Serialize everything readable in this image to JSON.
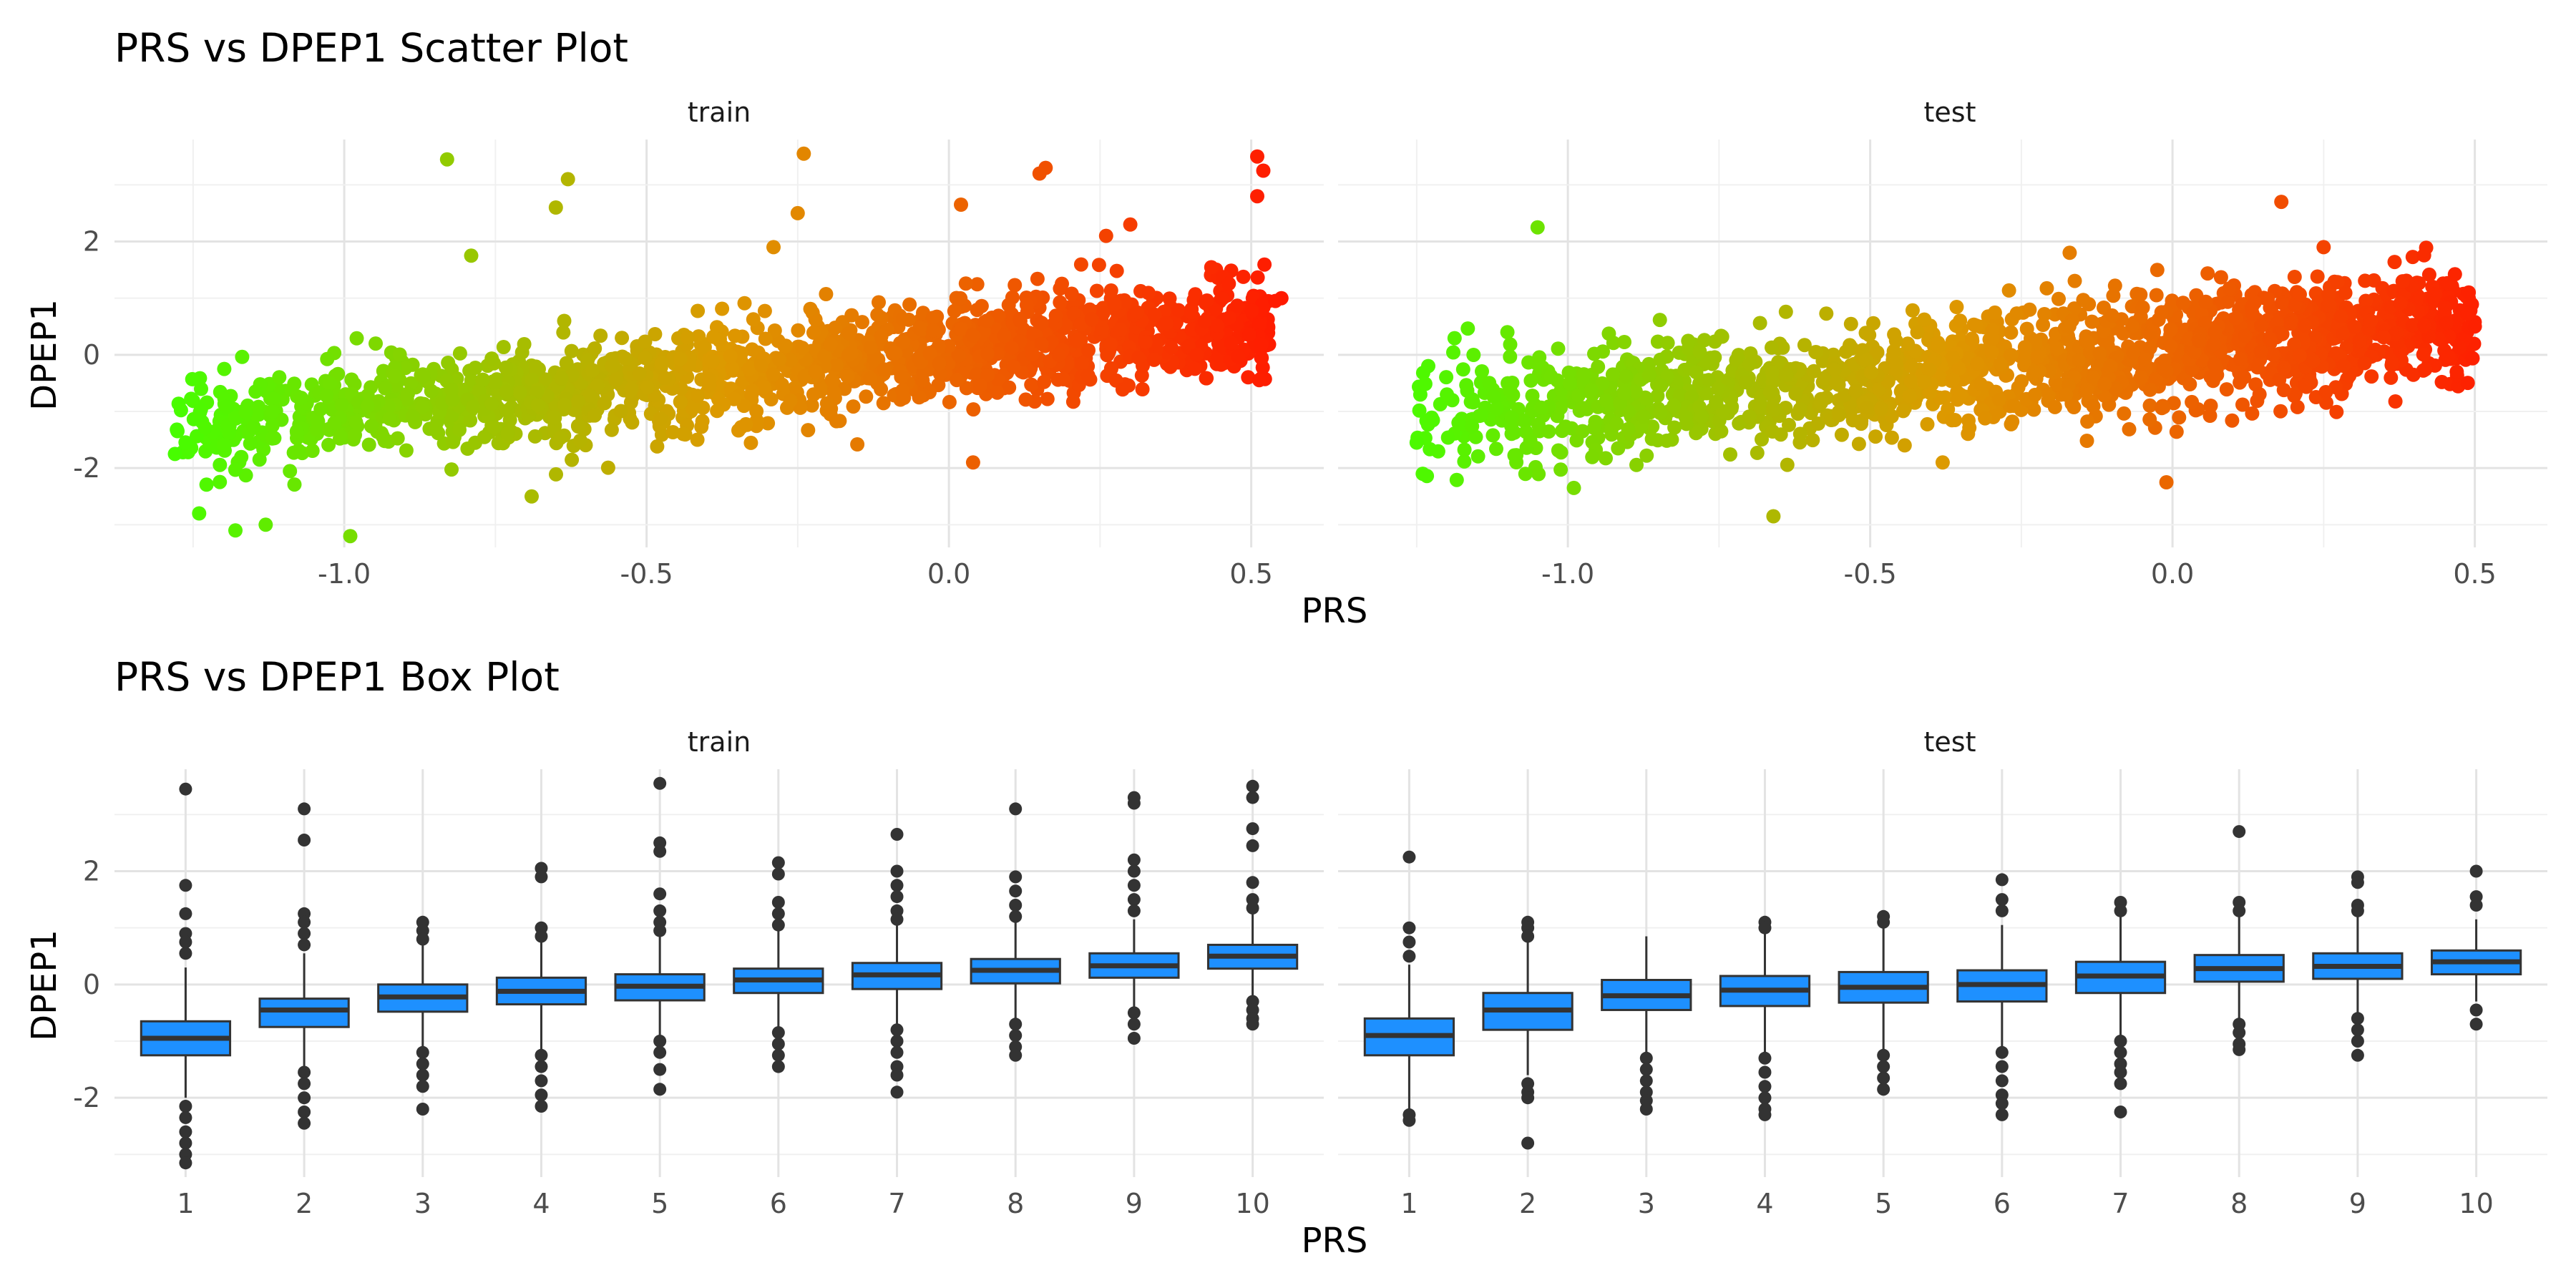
{
  "chart_data": [
    {
      "type": "scatter",
      "title": "PRS vs DPEP1 Scatter Plot",
      "xlabel": "PRS",
      "ylabel": "DPEP1",
      "x_ticks": [
        "-1.0",
        "-0.5",
        "0.0",
        "0.5"
      ],
      "y_ticks": [
        "-2",
        "0",
        "2"
      ],
      "xlim": [
        -1.38,
        0.62
      ],
      "ylim": [
        -3.4,
        3.8
      ],
      "grid": true,
      "color_scale": {
        "low": "#44ff00",
        "mid": "#dd9900",
        "high": "#ff1a00"
      },
      "facets": [
        {
          "label": "train",
          "trend": {
            "intercept": 0.05,
            "slope": 1.05,
            "spread": 0.45,
            "xmin": -1.28,
            "xmax": 0.53
          },
          "outliers": [
            [
              -0.83,
              3.45
            ],
            [
              -0.63,
              3.1
            ],
            [
              -0.65,
              2.6
            ],
            [
              -0.24,
              3.55
            ],
            [
              -0.25,
              2.5
            ],
            [
              -0.29,
              1.9
            ],
            [
              0.02,
              2.65
            ],
            [
              0.16,
              3.3
            ],
            [
              0.15,
              3.2
            ],
            [
              0.3,
              2.3
            ],
            [
              0.26,
              2.1
            ],
            [
              0.51,
              3.5
            ],
            [
              0.52,
              3.25
            ],
            [
              0.51,
              2.8
            ],
            [
              -0.79,
              1.75
            ],
            [
              -0.99,
              -3.2
            ],
            [
              -1.18,
              -3.1
            ],
            [
              -1.28,
              -1.75
            ],
            [
              -1.24,
              -2.8
            ],
            [
              -0.69,
              -2.5
            ],
            [
              0.04,
              -1.9
            ],
            [
              -1.13,
              -3.0
            ],
            [
              0.55,
              1.0
            ],
            [
              0.54,
              0.95
            ]
          ]
        },
        {
          "label": "test",
          "trend": {
            "intercept": 0.1,
            "slope": 1.0,
            "spread": 0.5,
            "xmin": -1.25,
            "xmax": 0.5
          },
          "outliers": [
            [
              -1.05,
              2.25
            ],
            [
              0.18,
              2.7
            ],
            [
              -0.17,
              1.8
            ],
            [
              -1.25,
              -1.55
            ],
            [
              -1.24,
              -2.1
            ],
            [
              -1.2,
              -0.7
            ],
            [
              -0.66,
              -2.85
            ],
            [
              -0.01,
              -2.25
            ],
            [
              0.49,
              1.1
            ],
            [
              0.5,
              0.5
            ],
            [
              -1.1,
              0.4
            ],
            [
              0.47,
              -0.3
            ],
            [
              -0.99,
              -2.35
            ],
            [
              0.25,
              1.9
            ]
          ]
        }
      ]
    },
    {
      "type": "box",
      "title": "PRS vs DPEP1 Box Plot",
      "xlabel": "PRS",
      "ylabel": "DPEP1",
      "categories": [
        "1",
        "2",
        "3",
        "4",
        "5",
        "6",
        "7",
        "8",
        "9",
        "10"
      ],
      "y_ticks": [
        "-2",
        "0",
        "2"
      ],
      "ylim": [
        -3.4,
        3.8
      ],
      "grid": true,
      "box_fill": "#1e90ff",
      "box_stroke": "#333333",
      "facets": [
        {
          "label": "train",
          "boxes": [
            {
              "q1": -1.25,
              "median": -0.95,
              "q3": -0.65,
              "lower": -2.0,
              "upper": 0.3,
              "outliers": [
                3.45,
                1.75,
                1.25,
                0.9,
                0.75,
                0.55,
                -2.15,
                -2.35,
                -2.6,
                -2.8,
                -3.0,
                -3.15
              ]
            },
            {
              "q1": -0.75,
              "median": -0.45,
              "q3": -0.25,
              "lower": -1.5,
              "upper": 0.55,
              "outliers": [
                3.1,
                2.55,
                1.25,
                1.1,
                0.9,
                0.7,
                -1.55,
                -1.75,
                -2.0,
                -2.25,
                -2.45
              ]
            },
            {
              "q1": -0.48,
              "median": -0.22,
              "q3": 0.0,
              "lower": -1.15,
              "upper": 0.7,
              "outliers": [
                1.1,
                0.95,
                0.8,
                -1.2,
                -1.4,
                -1.6,
                -1.8,
                -2.2
              ]
            },
            {
              "q1": -0.35,
              "median": -0.12,
              "q3": 0.12,
              "lower": -1.15,
              "upper": 0.75,
              "outliers": [
                2.05,
                1.9,
                1.0,
                0.85,
                -1.25,
                -1.45,
                -1.7,
                -1.95,
                -2.15
              ]
            },
            {
              "q1": -0.28,
              "median": -0.03,
              "q3": 0.18,
              "lower": -0.9,
              "upper": 0.85,
              "outliers": [
                3.55,
                2.5,
                2.35,
                1.6,
                1.3,
                1.1,
                0.95,
                -1.0,
                -1.2,
                -1.5,
                -1.85
              ]
            },
            {
              "q1": -0.15,
              "median": 0.08,
              "q3": 0.28,
              "lower": -0.75,
              "upper": 0.95,
              "outliers": [
                2.15,
                1.95,
                1.45,
                1.25,
                1.05,
                -0.85,
                -1.05,
                -1.25,
                -1.45
              ]
            },
            {
              "q1": -0.08,
              "median": 0.17,
              "q3": 0.38,
              "lower": -0.7,
              "upper": 1.05,
              "outliers": [
                2.65,
                2.0,
                1.75,
                1.55,
                1.3,
                1.15,
                -0.8,
                -1.0,
                -1.2,
                -1.45,
                -1.6,
                -1.9
              ]
            },
            {
              "q1": 0.02,
              "median": 0.25,
              "q3": 0.45,
              "lower": -0.6,
              "upper": 1.1,
              "outliers": [
                3.1,
                1.9,
                1.65,
                1.4,
                1.2,
                -0.7,
                -0.9,
                -1.1,
                -1.25
              ]
            },
            {
              "q1": 0.12,
              "median": 0.33,
              "q3": 0.55,
              "lower": -0.45,
              "upper": 1.15,
              "outliers": [
                3.3,
                3.2,
                2.2,
                2.0,
                1.75,
                1.5,
                1.3,
                -0.5,
                -0.7,
                -0.95
              ]
            },
            {
              "q1": 0.28,
              "median": 0.5,
              "q3": 0.7,
              "lower": -0.2,
              "upper": 1.25,
              "outliers": [
                3.5,
                3.3,
                2.75,
                2.45,
                1.8,
                1.5,
                1.35,
                -0.3,
                -0.45,
                -0.6,
                -0.7
              ]
            }
          ]
        },
        {
          "label": "test",
          "boxes": [
            {
              "q1": -1.25,
              "median": -0.9,
              "q3": -0.6,
              "lower": -2.2,
              "upper": 0.35,
              "outliers": [
                2.25,
                1.0,
                0.75,
                0.5,
                -2.3,
                -2.4
              ]
            },
            {
              "q1": -0.8,
              "median": -0.45,
              "q3": -0.15,
              "lower": -1.6,
              "upper": 0.75,
              "outliers": [
                1.1,
                1.0,
                0.85,
                -1.75,
                -1.9,
                -2.0,
                -2.8
              ]
            },
            {
              "q1": -0.45,
              "median": -0.2,
              "q3": 0.08,
              "lower": -1.2,
              "upper": 0.85,
              "outliers": [
                -1.3,
                -1.5,
                -1.7,
                -1.9,
                -2.05,
                -2.2
              ]
            },
            {
              "q1": -0.38,
              "median": -0.1,
              "q3": 0.15,
              "lower": -1.2,
              "upper": 0.9,
              "outliers": [
                1.1,
                1.0,
                -1.3,
                -1.55,
                -1.8,
                -2.0,
                -2.2,
                -2.3
              ]
            },
            {
              "q1": -0.32,
              "median": -0.05,
              "q3": 0.22,
              "lower": -1.15,
              "upper": 1.0,
              "outliers": [
                1.2,
                1.1,
                -1.25,
                -1.45,
                -1.65,
                -1.85
              ]
            },
            {
              "q1": -0.3,
              "median": 0.0,
              "q3": 0.25,
              "lower": -1.1,
              "upper": 1.05,
              "outliers": [
                1.85,
                1.5,
                1.3,
                -1.2,
                -1.45,
                -1.7,
                -1.95,
                -2.1,
                -2.3
              ]
            },
            {
              "q1": -0.15,
              "median": 0.15,
              "q3": 0.4,
              "lower": -0.9,
              "upper": 1.2,
              "outliers": [
                1.45,
                1.3,
                -1.0,
                -1.2,
                -1.4,
                -1.55,
                -1.75,
                -2.25
              ]
            },
            {
              "q1": 0.05,
              "median": 0.28,
              "q3": 0.52,
              "lower": -0.6,
              "upper": 1.2,
              "outliers": [
                2.7,
                1.45,
                1.3,
                -0.7,
                -0.85,
                -1.05,
                -1.15
              ]
            },
            {
              "q1": 0.1,
              "median": 0.32,
              "q3": 0.55,
              "lower": -0.5,
              "upper": 1.2,
              "outliers": [
                1.9,
                1.8,
                1.4,
                1.3,
                -0.6,
                -0.8,
                -1.0,
                -1.25
              ]
            },
            {
              "q1": 0.18,
              "median": 0.4,
              "q3": 0.6,
              "lower": -0.3,
              "upper": 1.15,
              "outliers": [
                2.0,
                1.55,
                1.4,
                -0.45,
                -0.7
              ]
            }
          ]
        }
      ]
    }
  ]
}
